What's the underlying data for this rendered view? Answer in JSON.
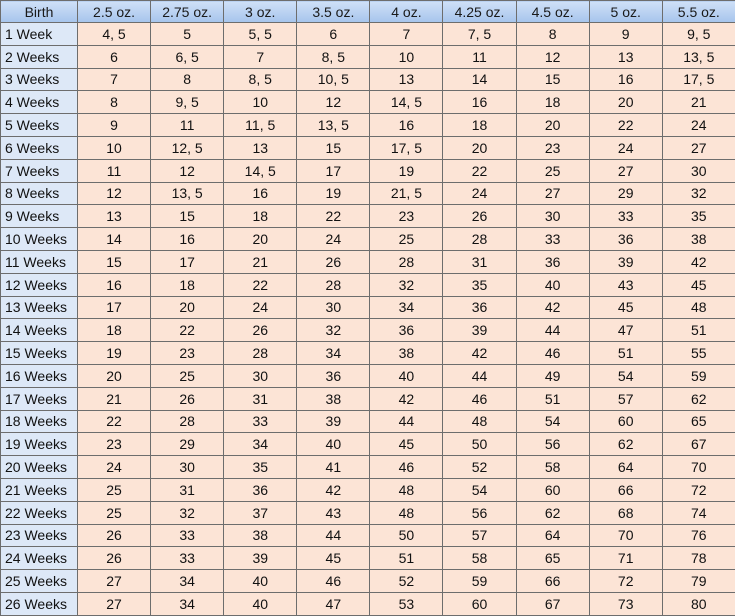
{
  "chart_data": {
    "type": "table",
    "header_color": "#a6c4ec",
    "label_color": "#dde8f7",
    "cell_color": "#fce4d6",
    "columns": [
      "Birth",
      "2.5 oz.",
      "2.75 oz.",
      "3 oz.",
      "3.5 oz.",
      "4 oz.",
      "4.25 oz.",
      "4.5 oz.",
      "5 oz.",
      "5.5 oz."
    ],
    "rows": [
      [
        "1 Week",
        "4, 5",
        "5",
        "5, 5",
        "6",
        "7",
        "7, 5",
        "8",
        "9",
        "9, 5"
      ],
      [
        "2 Weeks",
        "6",
        "6, 5",
        "7",
        "8, 5",
        "10",
        "11",
        "12",
        "13",
        "13, 5"
      ],
      [
        "3 Weeks",
        "7",
        "8",
        "8, 5",
        "10, 5",
        "13",
        "14",
        "15",
        "16",
        "17, 5"
      ],
      [
        "4 Weeks",
        "8",
        "9, 5",
        "10",
        "12",
        "14, 5",
        "16",
        "18",
        "20",
        "21"
      ],
      [
        "5 Weeks",
        "9",
        "11",
        "11, 5",
        "13, 5",
        "16",
        "18",
        "20",
        "22",
        "24"
      ],
      [
        "6 Weeks",
        "10",
        "12, 5",
        "13",
        "15",
        "17, 5",
        "20",
        "23",
        "24",
        "27"
      ],
      [
        "7 Weeks",
        "11",
        "12",
        "14, 5",
        "17",
        "19",
        "22",
        "25",
        "27",
        "30"
      ],
      [
        "8 Weeks",
        "12",
        "13, 5",
        "16",
        "19",
        "21, 5",
        "24",
        "27",
        "29",
        "32"
      ],
      [
        "9 Weeks",
        "13",
        "15",
        "18",
        "22",
        "23",
        "26",
        "30",
        "33",
        "35"
      ],
      [
        "10 Weeks",
        "14",
        "16",
        "20",
        "24",
        "25",
        "28",
        "33",
        "36",
        "38"
      ],
      [
        "11 Weeks",
        "15",
        "17",
        "21",
        "26",
        "28",
        "31",
        "36",
        "39",
        "42"
      ],
      [
        "12 Weeks",
        "16",
        "18",
        "22",
        "28",
        "32",
        "35",
        "40",
        "43",
        "45"
      ],
      [
        "13 Weeks",
        "17",
        "20",
        "24",
        "30",
        "34",
        "36",
        "42",
        "45",
        "48"
      ],
      [
        "14 Weeks",
        "18",
        "22",
        "26",
        "32",
        "36",
        "39",
        "44",
        "47",
        "51"
      ],
      [
        "15 Weeks",
        "19",
        "23",
        "28",
        "34",
        "38",
        "42",
        "46",
        "51",
        "55"
      ],
      [
        "16 Weeks",
        "20",
        "25",
        "30",
        "36",
        "40",
        "44",
        "49",
        "54",
        "59"
      ],
      [
        "17 Weeks",
        "21",
        "26",
        "31",
        "38",
        "42",
        "46",
        "51",
        "57",
        "62"
      ],
      [
        "18 Weeks",
        "22",
        "28",
        "33",
        "39",
        "44",
        "48",
        "54",
        "60",
        "65"
      ],
      [
        "19 Weeks",
        "23",
        "29",
        "34",
        "40",
        "45",
        "50",
        "56",
        "62",
        "67"
      ],
      [
        "20 Weeks",
        "24",
        "30",
        "35",
        "41",
        "46",
        "52",
        "58",
        "64",
        "70"
      ],
      [
        "21 Weeks",
        "25",
        "31",
        "36",
        "42",
        "48",
        "54",
        "60",
        "66",
        "72"
      ],
      [
        "22 Weeks",
        "25",
        "32",
        "37",
        "43",
        "48",
        "56",
        "62",
        "68",
        "74"
      ],
      [
        "23 Weeks",
        "26",
        "33",
        "38",
        "44",
        "50",
        "57",
        "64",
        "70",
        "76"
      ],
      [
        "24 Weeks",
        "26",
        "33",
        "39",
        "45",
        "51",
        "58",
        "65",
        "71",
        "78"
      ],
      [
        "25 Weeks",
        "27",
        "34",
        "40",
        "46",
        "52",
        "59",
        "66",
        "72",
        "79"
      ],
      [
        "26 Weeks",
        "27",
        "34",
        "40",
        "47",
        "53",
        "60",
        "67",
        "73",
        "80"
      ]
    ]
  }
}
